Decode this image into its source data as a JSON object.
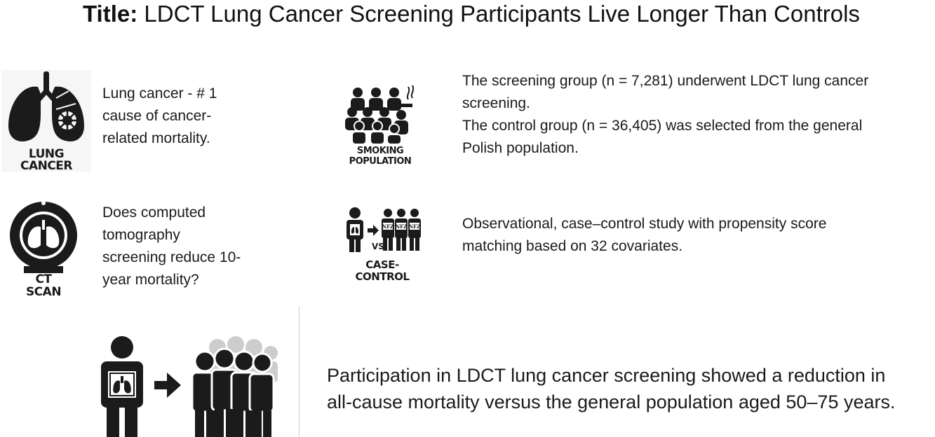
{
  "title": {
    "prefix": "Title:",
    "text": "LDCT Lung Cancer Screening Participants Live Longer Than Controls"
  },
  "panels": {
    "lung_cancer": {
      "icon": "lungs-tumor-icon",
      "caption_line1": "LUNG",
      "caption_line2": "CANCER",
      "text_line1": "Lung cancer - # 1",
      "text_line2": "cause of cancer-",
      "text_line3": "related mortality."
    },
    "ct_scan": {
      "icon": "ct-scanner-icon",
      "caption_line1": "CT",
      "caption_line2": "SCAN",
      "text_line1": "Does computed",
      "text_line2": "tomography",
      "text_line3": "screening reduce 10-",
      "text_line4": "year mortality?"
    },
    "smoking_population": {
      "icon": "smoking-crowd-icon",
      "caption_line1": "SMOKING",
      "caption_line2": "POPULATION",
      "text_line1": "The screening group (n = 7,281) underwent LDCT lung cancer",
      "text_line2": "screening.",
      "text_line3": "The control group (n = 36,405) was selected from the general",
      "text_line4": "Polish population."
    },
    "case_control": {
      "icon": "case-control-icon",
      "vs_label": "VS",
      "badge_label": "NFZ",
      "caption_line1": "CASE-",
      "caption_line2": "CONTROL",
      "text_line1": "Observational, case–control study with propensity score",
      "text_line2": "matching based on 32 covariates."
    },
    "conclusion": {
      "icon": "screened-person-vs-population-icon",
      "text_line1": "Participation in LDCT lung cancer screening showed a reduction in",
      "text_line2": "all-cause mortality versus the general population aged 50–75 years."
    }
  },
  "colors": {
    "icon_dark": "#1b1b1b",
    "icon_light": "#c8c8c8",
    "text": "#1a1a1a"
  }
}
